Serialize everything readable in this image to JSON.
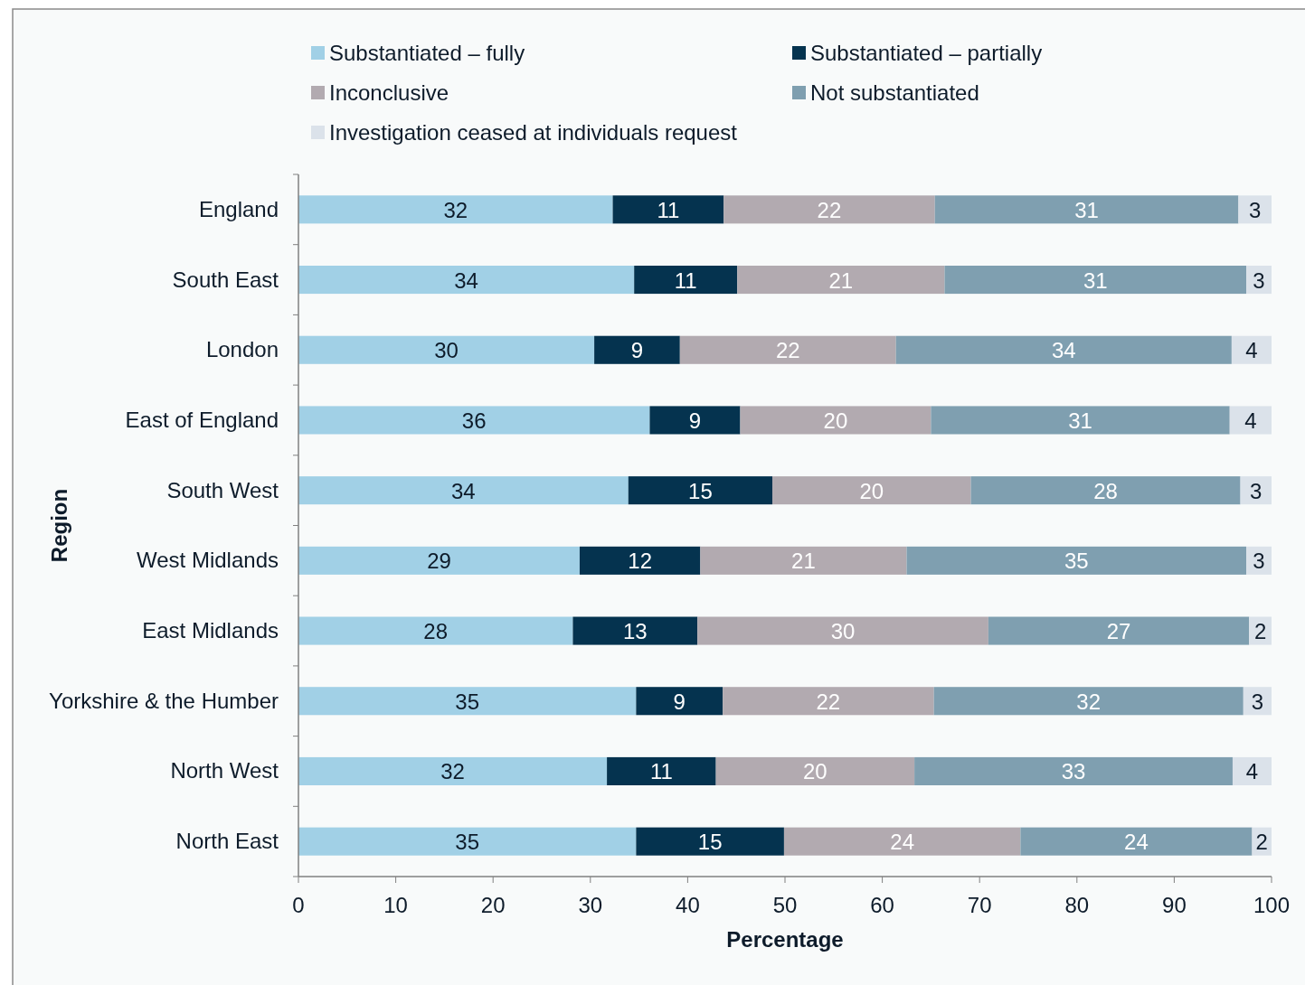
{
  "chart_data": {
    "type": "bar",
    "orientation": "horizontal",
    "stacked": true,
    "xlabel": "Percentage",
    "ylabel": "Region",
    "legend": "top",
    "grid": false,
    "categories": [
      "England",
      "South East",
      "London",
      "East of England",
      "South West",
      "West Midlands",
      "East Midlands",
      "Yorkshire & the Humber",
      "North West",
      "North East"
    ],
    "xlim": [
      0,
      100
    ],
    "xticks": [
      0,
      10,
      20,
      30,
      40,
      50,
      60,
      70,
      80,
      90,
      100
    ],
    "series": [
      {
        "name": "Substantiated – fully",
        "color": "#a1d0e6",
        "values": [
          32.3,
          34.5,
          30.4,
          36.1,
          33.9,
          28.9,
          28.2,
          34.7,
          31.7,
          34.7
        ],
        "value_labels": [
          "32",
          "34",
          "30",
          "36",
          "34",
          "29",
          "28",
          "35",
          "32",
          "35"
        ]
      },
      {
        "name": "Substantiated – partially",
        "color": "#05334f",
        "values": [
          11.4,
          10.6,
          8.8,
          9.3,
          14.8,
          12.4,
          12.8,
          8.9,
          11.2,
          15.2
        ],
        "value_labels": [
          "11",
          "11",
          "9",
          "9",
          "15",
          "12",
          "13",
          "9",
          "11",
          "15"
        ]
      },
      {
        "name": "Inconclusive",
        "color": "#b2aab0",
        "values": [
          21.7,
          21.3,
          22.2,
          19.6,
          20.4,
          21.2,
          29.9,
          21.7,
          20.4,
          24.3
        ],
        "value_labels": [
          "22",
          "21",
          "22",
          "20",
          "20",
          "21",
          "30",
          "22",
          "20",
          "24"
        ]
      },
      {
        "name": "Not substantiated",
        "color": "#7f9fb0",
        "values": [
          31.2,
          31.0,
          34.5,
          30.7,
          27.7,
          34.9,
          26.8,
          31.8,
          32.7,
          23.8
        ],
        "value_labels": [
          "31",
          "31",
          "34",
          "31",
          "28",
          "35",
          "27",
          "32",
          "33",
          "24"
        ]
      },
      {
        "name": "Investigation ceased at individuals request",
        "color": "#dbe2ea",
        "values": [
          3.4,
          2.6,
          4.1,
          4.3,
          3.2,
          2.6,
          2.3,
          2.9,
          4.0,
          2.0
        ],
        "value_labels": [
          "3",
          "3",
          "4",
          "4",
          "3",
          "3",
          "2",
          "3",
          "4",
          "2"
        ]
      }
    ]
  }
}
